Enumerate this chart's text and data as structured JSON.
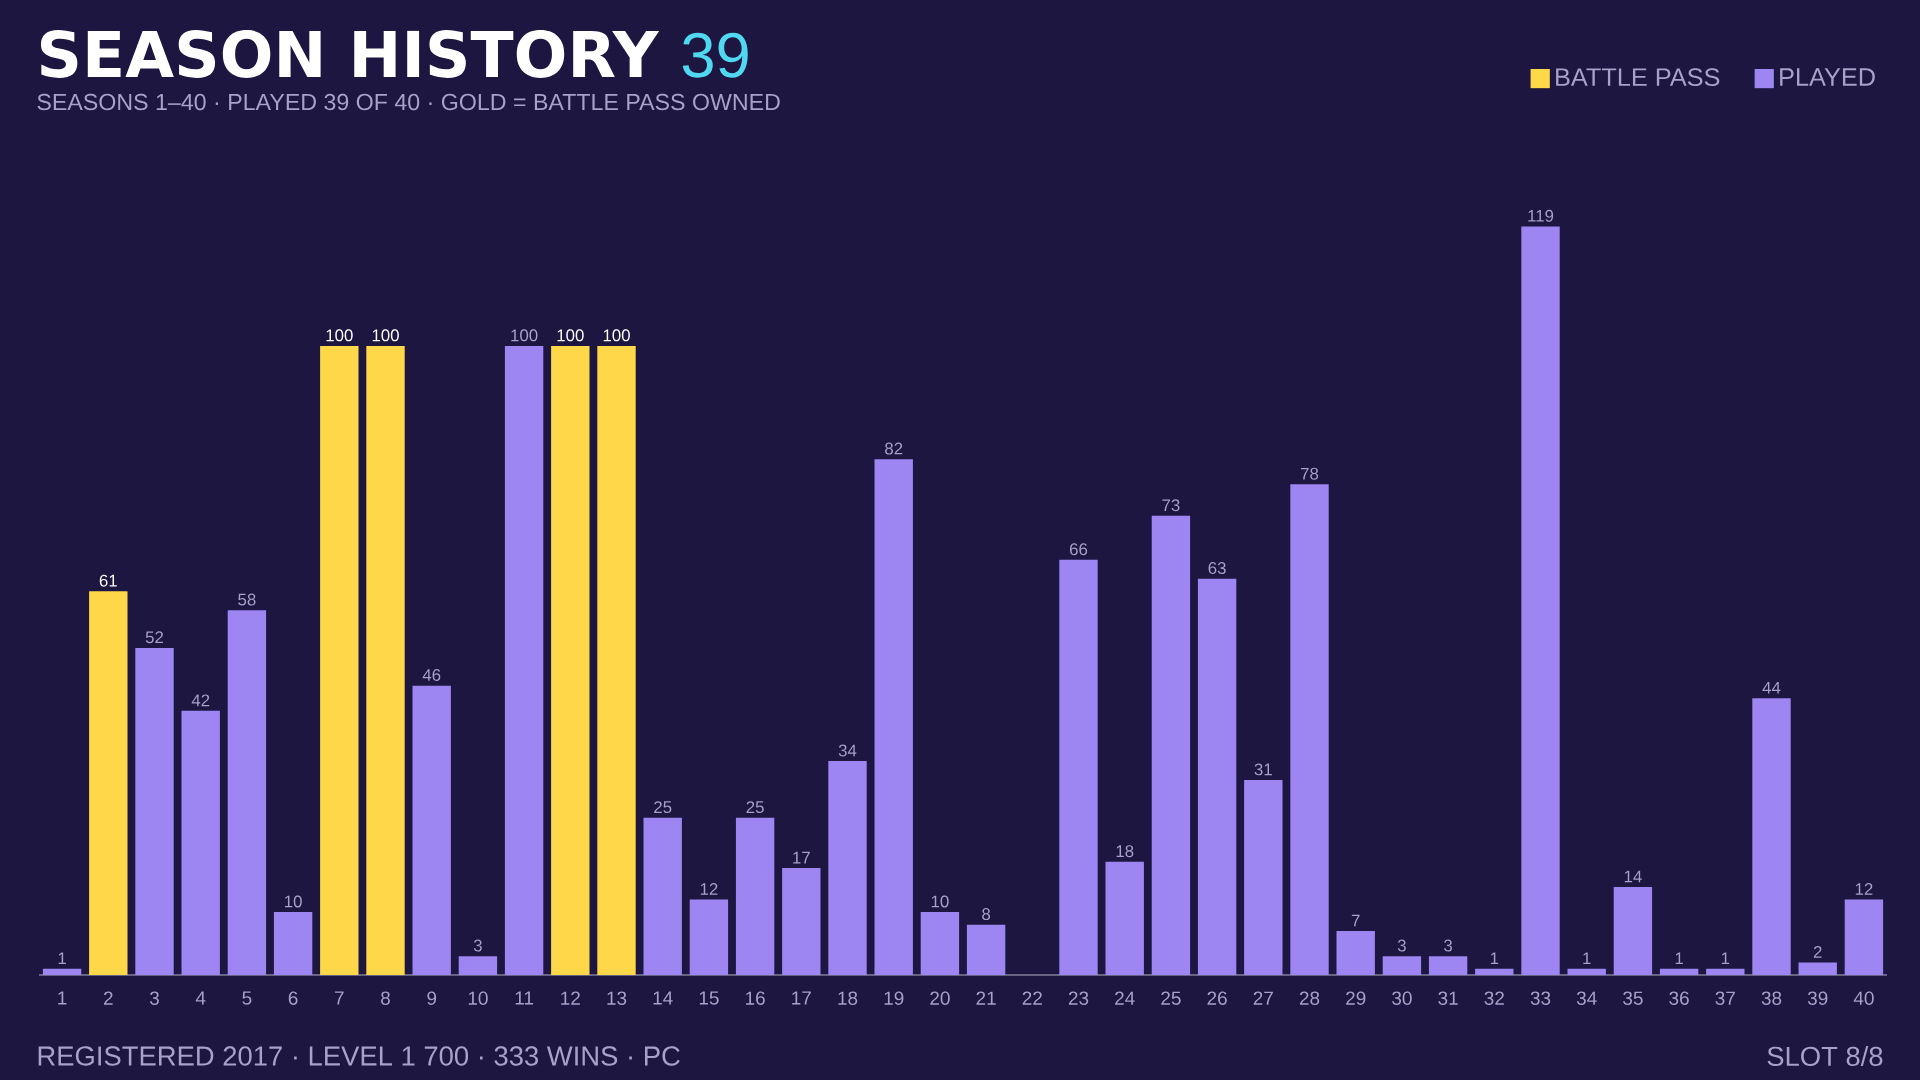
{
  "chart_data": {
    "type": "bar",
    "title": "SEASON HISTORY",
    "subtitle": "SEASONS 1–40 · PLAYED 39 OF 40 · GOLD = BATTLE PASS OWNED",
    "annotations": [
      "39",
      "REGISTERED 2017 · LEVEL 1 700 · 333 WINS · PC",
      "SLOT 8/8"
    ],
    "categories": [
      "1",
      "2",
      "3",
      "4",
      "5",
      "6",
      "7",
      "8",
      "9",
      "10",
      "11",
      "12",
      "13",
      "14",
      "15",
      "16",
      "17",
      "18",
      "19",
      "20",
      "21",
      "22",
      "23",
      "24",
      "25",
      "26",
      "27",
      "28",
      "29",
      "30",
      "31",
      "32",
      "33",
      "34",
      "35",
      "36",
      "37",
      "38",
      "39",
      "40"
    ],
    "series": [
      {
        "name": "BATTLE PASS",
        "color": "#ffd84a",
        "values": [
          null,
          61,
          null,
          null,
          null,
          null,
          100,
          100,
          null,
          null,
          null,
          100,
          100,
          null,
          null,
          null,
          null,
          null,
          null,
          null,
          null,
          null,
          null,
          null,
          null,
          null,
          null,
          null,
          null,
          null,
          null,
          null,
          null,
          null,
          null,
          null,
          null,
          null,
          null,
          null
        ]
      },
      {
        "name": "PLAYED",
        "color": "#9d86f2",
        "values": [
          1,
          null,
          52,
          42,
          58,
          10,
          null,
          null,
          46,
          3,
          100,
          null,
          null,
          25,
          12,
          25,
          17,
          34,
          82,
          10,
          8,
          null,
          66,
          18,
          73,
          63,
          31,
          78,
          7,
          3,
          3,
          1,
          119,
          1,
          14,
          1,
          1,
          44,
          2,
          12
        ]
      }
    ],
    "tick_labels": "x",
    "data_labels": true,
    "legend": "top right"
  }
}
